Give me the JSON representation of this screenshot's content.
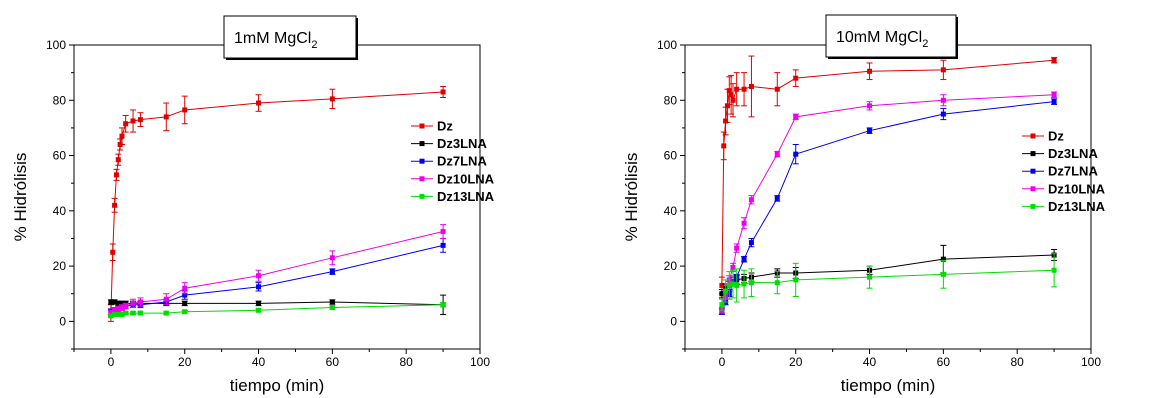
{
  "chart_data": [
    {
      "type": "line",
      "title_main": "1mM MgCl",
      "title_sub": "2",
      "xlabel": "tiempo (min)",
      "ylabel": "% Hidrólisis",
      "xlim": [
        -10,
        100
      ],
      "ylim": [
        -10,
        100
      ],
      "xticks": [
        0,
        20,
        40,
        60,
        80,
        100
      ],
      "yticks": [
        0,
        20,
        40,
        60,
        80,
        100
      ],
      "grid": false,
      "legend_position": "right",
      "series": [
        {
          "name": "Dz",
          "color": "#e00000",
          "x": [
            0,
            0.5,
            1,
            1.5,
            2,
            2.5,
            3,
            4,
            6,
            8,
            15,
            20,
            40,
            60,
            90
          ],
          "y": [
            3,
            25,
            42,
            53,
            58.5,
            64,
            67,
            71.5,
            72.5,
            73,
            74,
            76.5,
            79,
            80.5,
            83
          ],
          "err": [
            3,
            3,
            2.5,
            2,
            2,
            2,
            3,
            3,
            4,
            2.5,
            5,
            5,
            3,
            3.5,
            2
          ]
        },
        {
          "name": "Dz3LNA",
          "color": "#000000",
          "x": [
            0,
            1,
            2,
            3,
            4,
            6,
            8,
            15,
            20,
            40,
            60,
            90
          ],
          "y": [
            7,
            7,
            6.5,
            6.5,
            6.5,
            6.5,
            6.5,
            6.5,
            6.5,
            6.5,
            7,
            6
          ],
          "err": [
            0.8,
            0.8,
            0.8,
            0.8,
            0.8,
            0.8,
            0.8,
            0.8,
            0.8,
            0.8,
            0.8,
            3.5
          ]
        },
        {
          "name": "Dz7LNA",
          "color": "#0000ee",
          "x": [
            0,
            1,
            2,
            3,
            4,
            6,
            8,
            15,
            20,
            40,
            60,
            90
          ],
          "y": [
            3.5,
            4,
            4.5,
            5,
            5.5,
            6,
            6,
            7,
            9.5,
            12.5,
            18,
            27.5
          ],
          "err": [
            1,
            1,
            1,
            1,
            1,
            1,
            1,
            1,
            1.5,
            1.5,
            1,
            2.5
          ]
        },
        {
          "name": "Dz10LNA",
          "color": "#ee00ee",
          "x": [
            0,
            1,
            2,
            3,
            4,
            6,
            8,
            15,
            20,
            40,
            60,
            90
          ],
          "y": [
            3,
            4,
            4.5,
            5,
            5.5,
            6.5,
            7,
            8,
            12,
            16.5,
            23,
            32.5
          ],
          "err": [
            1,
            1,
            1,
            1,
            1,
            1.5,
            1.5,
            2,
            2,
            2,
            2.5,
            2.5
          ]
        },
        {
          "name": "Dz13LNA",
          "color": "#00dd00",
          "x": [
            0,
            1,
            2,
            3,
            4,
            6,
            8,
            15,
            20,
            40,
            60,
            90
          ],
          "y": [
            2,
            2.5,
            2.5,
            2.5,
            3,
            3,
            3,
            3,
            3.5,
            4,
            5,
            6
          ],
          "err": [
            0.5,
            0.5,
            0.5,
            0.5,
            0.5,
            0.5,
            0.5,
            0.5,
            0.5,
            0.5,
            0.5,
            0.8
          ]
        }
      ]
    },
    {
      "type": "line",
      "title_main": "10mM MgCl",
      "title_sub": "2",
      "xlabel": "tiempo (min)",
      "ylabel": "% Hidrólisis",
      "xlim": [
        -10,
        100
      ],
      "ylim": [
        -10,
        100
      ],
      "xticks": [
        0,
        20,
        40,
        60,
        80,
        100
      ],
      "yticks": [
        0,
        20,
        40,
        60,
        80,
        100
      ],
      "grid": false,
      "legend_position": "right",
      "series": [
        {
          "name": "Dz",
          "color": "#e00000",
          "x": [
            0,
            0.5,
            1,
            1.5,
            2,
            2.5,
            3,
            4,
            6,
            8,
            15,
            20,
            40,
            60,
            90
          ],
          "y": [
            13,
            63.5,
            72.5,
            78,
            83.5,
            82,
            80,
            84,
            84,
            85,
            84,
            88,
            90.5,
            91,
            94.5
          ],
          "err": [
            3,
            5,
            5,
            6,
            5,
            7,
            6,
            6,
            6,
            11,
            6,
            3,
            3,
            3.5,
            1
          ]
        },
        {
          "name": "Dz3LNA",
          "color": "#000000",
          "x": [
            0,
            1,
            2,
            3,
            4,
            6,
            8,
            15,
            20,
            40,
            60,
            90
          ],
          "y": [
            10,
            12,
            13,
            14.5,
            15,
            15.5,
            16,
            17.5,
            17.5,
            18.5,
            22.5,
            24
          ],
          "err": [
            1.5,
            1.5,
            1.5,
            1.5,
            1.5,
            1.5,
            1.5,
            1.5,
            2,
            1.5,
            5,
            2
          ]
        },
        {
          "name": "Dz7LNA",
          "color": "#0000ee",
          "x": [
            0,
            1,
            2,
            3,
            4,
            6,
            8,
            15,
            20,
            40,
            60,
            90
          ],
          "y": [
            3.5,
            7,
            10,
            14,
            16,
            22.5,
            28.5,
            44.5,
            60.5,
            69,
            75,
            79.5
          ],
          "err": [
            1,
            1,
            1,
            1,
            1,
            1,
            1.5,
            1,
            3.5,
            1,
            2,
            1
          ]
        },
        {
          "name": "Dz10LNA",
          "color": "#ee00ee",
          "x": [
            0,
            1,
            2,
            3,
            4,
            6,
            8,
            15,
            20,
            40,
            60,
            90
          ],
          "y": [
            4,
            9,
            15,
            19.5,
            26.5,
            35.5,
            44,
            60.5,
            74,
            78,
            80,
            82
          ],
          "err": [
            1,
            1,
            1.5,
            1.5,
            1.5,
            2,
            1.5,
            1,
            1,
            1.5,
            2,
            1
          ]
        },
        {
          "name": "Dz13LNA",
          "color": "#00dd00",
          "x": [
            0,
            1,
            2,
            3,
            4,
            6,
            8,
            15,
            20,
            40,
            60,
            90
          ],
          "y": [
            6,
            11,
            13,
            13.5,
            13,
            13.5,
            14,
            14,
            15,
            16,
            17,
            18.5
          ],
          "err": [
            2,
            4,
            5,
            5,
            6,
            5,
            5,
            4,
            6,
            4,
            5,
            6
          ]
        }
      ]
    }
  ]
}
